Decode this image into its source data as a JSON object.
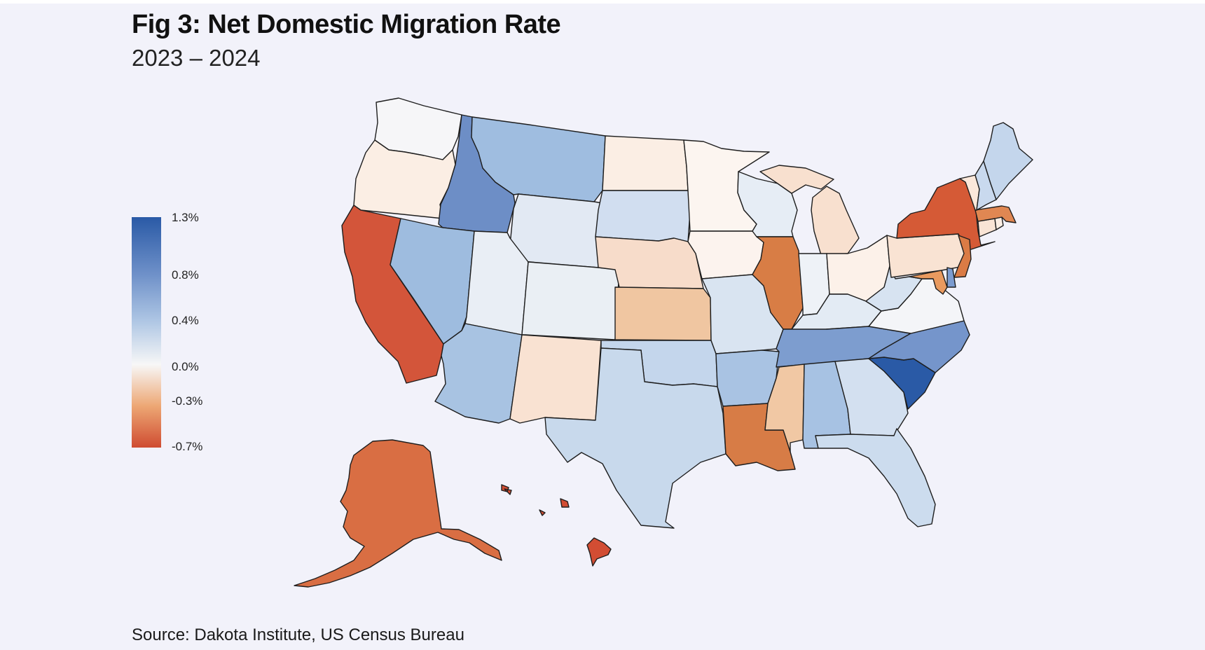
{
  "title": "Fig 3: Net Domestic Migration Rate",
  "subtitle": "2023 – 2024",
  "source": "Source: Dakota Institute, US Census Bureau",
  "legend": {
    "ticks": [
      {
        "label": "1.3%",
        "value": 1.3
      },
      {
        "label": "0.8%",
        "value": 0.8
      },
      {
        "label": "0.4%",
        "value": 0.4
      },
      {
        "label": "0.0%",
        "value": 0.0
      },
      {
        "label": "-0.3%",
        "value": -0.3
      },
      {
        "label": "-0.7%",
        "value": -0.7
      }
    ],
    "colors": {
      "max": "#2a5aa6",
      "high": "#6f91c9",
      "mid_high": "#aec6e4",
      "zero": "#f7f7f7",
      "mid_low": "#eda774",
      "min": "#cf4c31"
    }
  },
  "states": [
    {
      "id": "WA",
      "fill": "#f6f6f8"
    },
    {
      "id": "OR",
      "fill": "#fbeee4"
    },
    {
      "id": "CA",
      "fill": "#d3553a"
    },
    {
      "id": "ID",
      "fill": "#6d8ec6"
    },
    {
      "id": "NV",
      "fill": "#9ebcdf"
    },
    {
      "id": "MT",
      "fill": "#9fbde0"
    },
    {
      "id": "WY",
      "fill": "#e2e9f3"
    },
    {
      "id": "UT",
      "fill": "#e9eef5"
    },
    {
      "id": "AZ",
      "fill": "#a8c3e2"
    },
    {
      "id": "CO",
      "fill": "#eaeff4"
    },
    {
      "id": "NM",
      "fill": "#f9e2d2"
    },
    {
      "id": "ND",
      "fill": "#fbeee4"
    },
    {
      "id": "SD",
      "fill": "#d1def0"
    },
    {
      "id": "NE",
      "fill": "#f7dcca"
    },
    {
      "id": "KS",
      "fill": "#f0c6a1"
    },
    {
      "id": "OK",
      "fill": "#c4d6ec"
    },
    {
      "id": "TX",
      "fill": "#c8d9ec"
    },
    {
      "id": "MN",
      "fill": "#fcf5f0"
    },
    {
      "id": "IA",
      "fill": "#fcf3ee"
    },
    {
      "id": "MO",
      "fill": "#d9e4f1"
    },
    {
      "id": "AR",
      "fill": "#a9c3e3"
    },
    {
      "id": "LA",
      "fill": "#d77c46"
    },
    {
      "id": "WI",
      "fill": "#e6edf5"
    },
    {
      "id": "IL",
      "fill": "#d87d45"
    },
    {
      "id": "MI",
      "fill": "#f8e0cf"
    },
    {
      "id": "IN",
      "fill": "#eef2f7"
    },
    {
      "id": "OH",
      "fill": "#fcf1e9"
    },
    {
      "id": "KY",
      "fill": "#e3ebf4"
    },
    {
      "id": "TN",
      "fill": "#7d9dcf"
    },
    {
      "id": "MS",
      "fill": "#f1c8a4"
    },
    {
      "id": "AL",
      "fill": "#a7c2e3"
    },
    {
      "id": "GA",
      "fill": "#d3e0f0"
    },
    {
      "id": "FL",
      "fill": "#ccdcee"
    },
    {
      "id": "SC",
      "fill": "#2a5aa6"
    },
    {
      "id": "NC",
      "fill": "#7595cb"
    },
    {
      "id": "VA",
      "fill": "#f4f5f8"
    },
    {
      "id": "WV",
      "fill": "#d7e3f1"
    },
    {
      "id": "PA",
      "fill": "#f9e3d3"
    },
    {
      "id": "NY",
      "fill": "#d55a36"
    },
    {
      "id": "NJ",
      "fill": "#da7b45"
    },
    {
      "id": "MD",
      "fill": "#e99a5f"
    },
    {
      "id": "DE",
      "fill": "#7c9cd0"
    },
    {
      "id": "CT",
      "fill": "#f9e4d5"
    },
    {
      "id": "RI",
      "fill": "#fbeee4"
    },
    {
      "id": "MA",
      "fill": "#e08752"
    },
    {
      "id": "VT",
      "fill": "#fbe8da"
    },
    {
      "id": "NH",
      "fill": "#c9d9ee"
    },
    {
      "id": "ME",
      "fill": "#c4d6ec"
    },
    {
      "id": "AK",
      "fill": "#d96e43"
    },
    {
      "id": "HI",
      "fill": "#d24d33"
    }
  ]
}
